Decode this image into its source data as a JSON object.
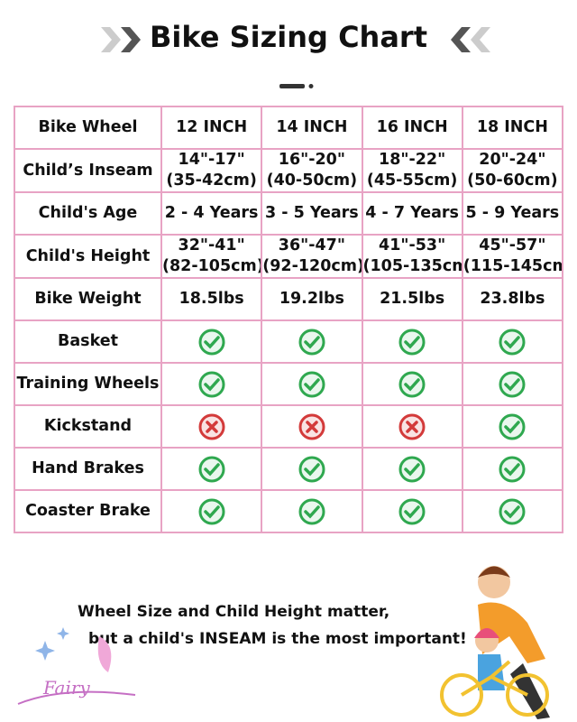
{
  "header": {
    "title": "Bike Sizing Chart"
  },
  "table": {
    "rows": [
      {
        "label": "Bike Wheel",
        "cells": [
          "12 INCH",
          "14 INCH",
          "16 INCH",
          "18 INCH"
        ]
      },
      {
        "label": "Child’s Inseam",
        "cells": [
          [
            "14\"-17\"",
            "(35-42cm)"
          ],
          [
            "16\"-20\"",
            "(40-50cm)"
          ],
          [
            "18\"-22\"",
            "(45-55cm)"
          ],
          [
            "20\"-24\"",
            "(50-60cm)"
          ]
        ]
      },
      {
        "label": "Child's Age",
        "cells": [
          "2 - 4 Years",
          "3 - 5 Years",
          "4 - 7 Years",
          "5 - 9 Years"
        ]
      },
      {
        "label": "Child's Height",
        "cells": [
          [
            "32\"-41\"",
            "(82-105cm)"
          ],
          [
            "36\"-47\"",
            "(92-120cm)"
          ],
          [
            "41\"-53\"",
            "(105-135cm"
          ],
          [
            "45\"-57\"",
            "(115-145cm"
          ]
        ]
      },
      {
        "label": "Bike Weight",
        "cells": [
          "18.5lbs",
          "19.2lbs",
          "21.5lbs",
          "23.8lbs"
        ]
      },
      {
        "label": "Basket",
        "cells": [
          true,
          true,
          true,
          true
        ]
      },
      {
        "label": "Training Wheels",
        "cells": [
          true,
          true,
          true,
          true
        ]
      },
      {
        "label": "Kickstand",
        "cells": [
          false,
          false,
          false,
          true
        ]
      },
      {
        "label": "Hand Brakes",
        "cells": [
          true,
          true,
          true,
          true
        ]
      },
      {
        "label": "Coaster Brake",
        "cells": [
          true,
          true,
          true,
          true
        ]
      }
    ]
  },
  "footer": {
    "lines": [
      "Wheel Size and Child Height matter,",
      "but a child's INSEAM is the most important!"
    ],
    "brand": "Fairy"
  }
}
